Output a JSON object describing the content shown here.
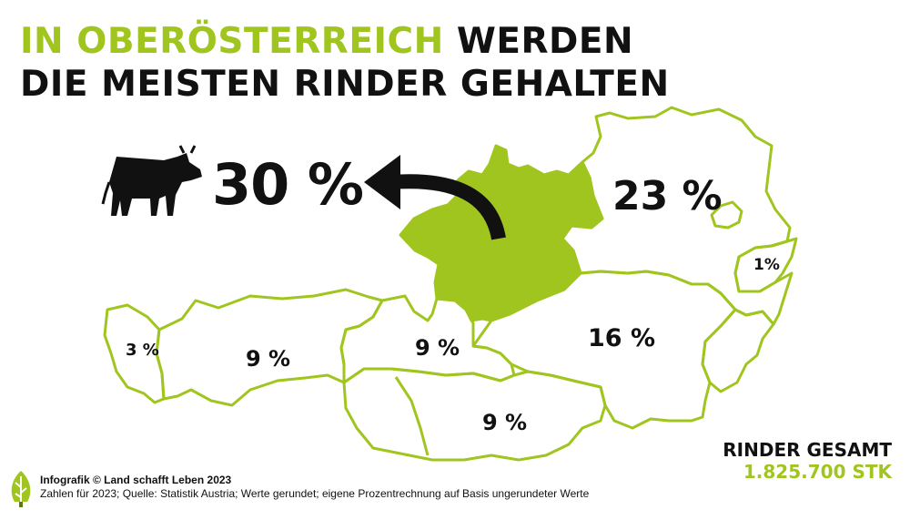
{
  "title": {
    "highlight": "IN OBERÖSTERREICH",
    "rest_line1": " WERDEN",
    "line2": "DIE MEISTEN RINDER GEHALTEN"
  },
  "highlight_value": "30 %",
  "regions": [
    {
      "name": "Oberösterreich",
      "value": "30 %",
      "highlighted": true
    },
    {
      "name": "Niederösterreich",
      "value": "23 %"
    },
    {
      "name": "Wien",
      "value": "1%"
    },
    {
      "name": "Steiermark",
      "value": "16 %"
    },
    {
      "name": "Kärnten",
      "value": "9 %"
    },
    {
      "name": "Salzburg",
      "value": "9 %"
    },
    {
      "name": "Tirol",
      "value": "9 %"
    },
    {
      "name": "Vorarlberg",
      "value": "3 %"
    }
  ],
  "total": {
    "label": "RINDER GESAMT",
    "value": "1.825.700 STK"
  },
  "footer": {
    "credit": "Infografik © Land schafft Leben 2023",
    "source": "Zahlen für 2023; Quelle: Statistik Austria; Werte gerundet; eigene Prozentrechnung auf Basis ungerundeter Werte"
  },
  "colors": {
    "accent": "#a0c51f",
    "text": "#111111",
    "background": "#ffffff"
  },
  "icons": [
    "cow-icon",
    "curved-arrow-icon",
    "leaf-logo-icon"
  ]
}
